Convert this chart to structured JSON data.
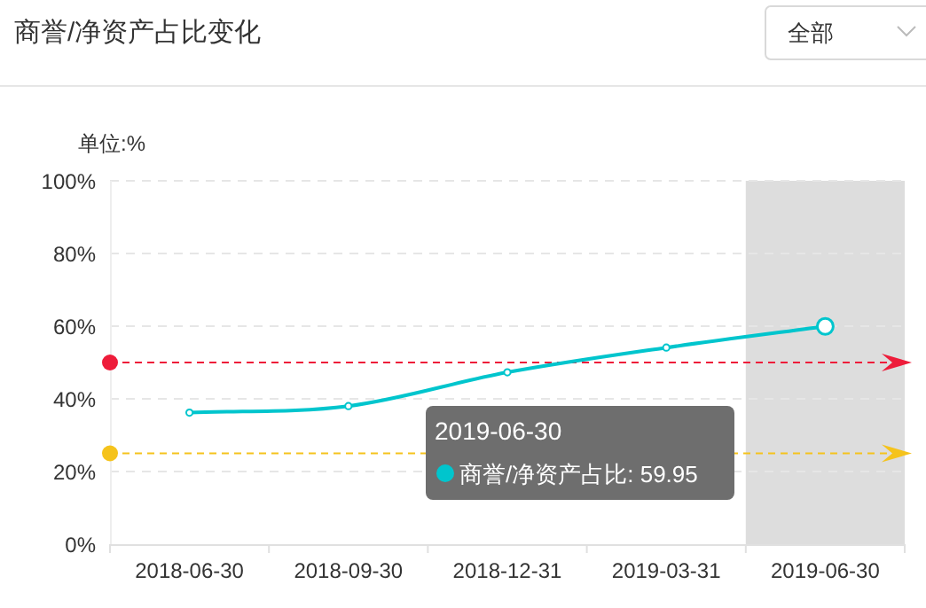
{
  "chart_data": {
    "type": "line",
    "title": "商誉/净资产占比变化",
    "ylabel": "单位:%",
    "categories": [
      "2018-06-30",
      "2018-09-30",
      "2018-12-31",
      "2019-03-31",
      "2019-06-30"
    ],
    "series": [
      {
        "color": "#00c5cd",
        "values": [
          36.2,
          38.0,
          47.3,
          54.1,
          59.95
        ]
      }
    ],
    "ylim": [
      0,
      100
    ],
    "yticks": [
      {
        "value": 0,
        "label": "0%"
      },
      {
        "value": 20,
        "label": "20%"
      },
      {
        "value": 40,
        "label": "40%"
      },
      {
        "value": 60,
        "label": "60%"
      },
      {
        "value": 80,
        "label": "80%"
      },
      {
        "value": 100,
        "label": "100%"
      }
    ],
    "grid": "y",
    "marker": "circle",
    "line_style": "solid",
    "ref_lines": [
      {
        "axis": "y",
        "value": 50,
        "color": "#ee1c3a",
        "line_style": "dashed"
      },
      {
        "axis": "y",
        "value": 25,
        "color": "#f5c31c",
        "line_style": "dashed"
      }
    ],
    "bands": [
      {
        "axis": "x",
        "from": "2019-06-30",
        "to": "2019-06-30",
        "color": "#dddddd"
      }
    ],
    "annotations": [
      "全部",
      "2019-06-30",
      "商誉/净资产占比: 59.95"
    ]
  }
}
